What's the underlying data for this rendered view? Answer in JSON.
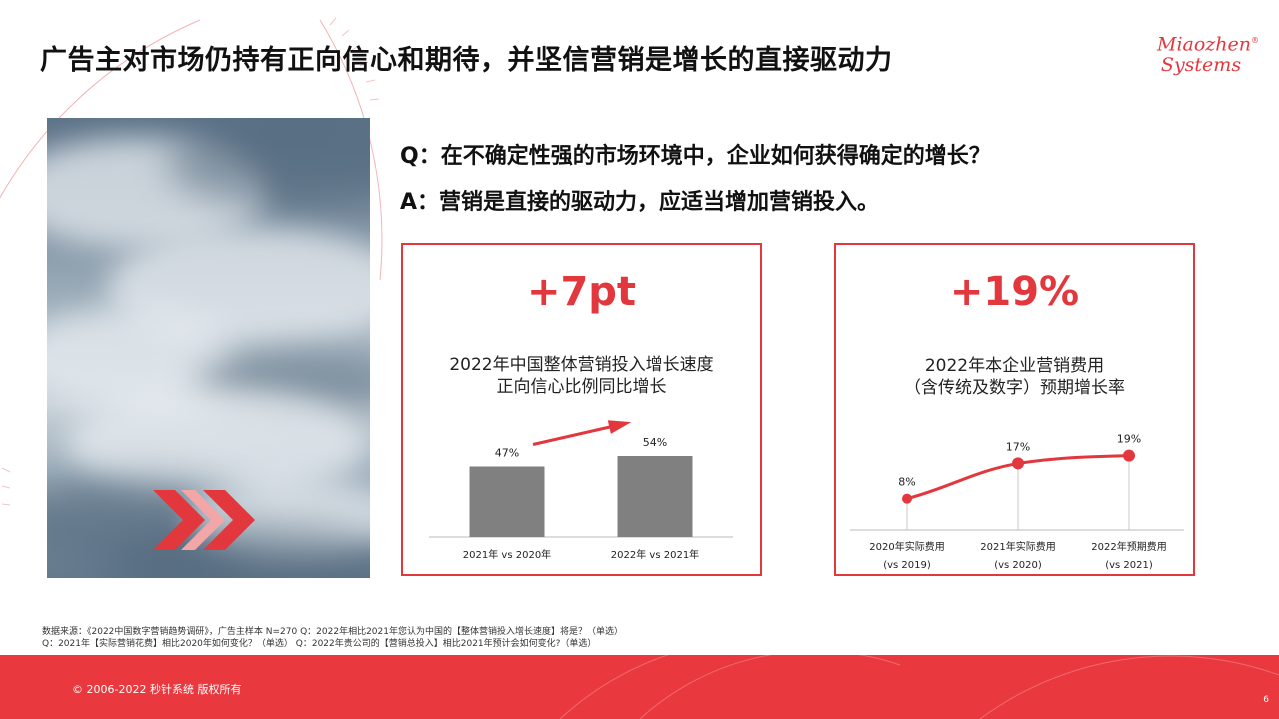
{
  "page": {
    "title": "广告主对市场仍持有正向信心和期待，并坚信营销是增长的直接驱动力",
    "logo": {
      "line1": "Miaozhen",
      "line2": "Systems",
      "mark": "®"
    },
    "question": "Q：在不确定性强的市场环境中，企业如何获得确定的增长？",
    "answer": "A：营销是直接的驱动力，应适当增加营销投入。"
  },
  "cards": {
    "left": {
      "headline": "+7pt",
      "subtitle_line1": "2022年中国整体营销投入增长速度",
      "subtitle_line2": "正向信心比例同比增长"
    },
    "right": {
      "headline": "+19%",
      "subtitle_line1": "2022年本企业营销费用",
      "subtitle_line2": "（含传统及数字）预期增长率"
    }
  },
  "chart_data": [
    {
      "type": "bar",
      "categories": [
        "2021年 vs 2020年",
        "2022年 vs 2021年"
      ],
      "values": [
        47,
        54
      ],
      "data_labels": [
        "47%",
        "54%"
      ],
      "ylim": [
        0,
        80
      ],
      "grid": false,
      "bar_color": "#808080",
      "arrow_color": "#e3373e"
    },
    {
      "type": "line",
      "categories": [
        "2020年实际费用",
        "2021年实际费用",
        "2022年预期费用"
      ],
      "category_notes": [
        "(vs 2019)",
        "(vs 2020)",
        "(vs 2021)"
      ],
      "values": [
        8,
        17,
        19
      ],
      "data_labels": [
        "8%",
        "17%",
        "19%"
      ],
      "ylim": [
        0,
        24
      ],
      "grid": false,
      "line_color": "#e3373e"
    }
  ],
  "footnote": {
    "line1": "数据来源：《2022中国数字营销趋势调研》，广告主样本 N=270    Q：2022年相比2021年您认为中国的【整体营销投入增长速度】将是？（单选）",
    "line2": "Q：2021年【实际营销花费】相比2020年如何变化？（单选）     Q：2022年贵公司的【营销总投入】相比2021年预计会如何变化?（单选）"
  },
  "footer": {
    "copyright": "© 2006-2022 秒针系统 版权所有",
    "page_number": "6"
  },
  "colors": {
    "accent": "#e3373e",
    "bar": "#808080",
    "footer": "#e9393f"
  }
}
